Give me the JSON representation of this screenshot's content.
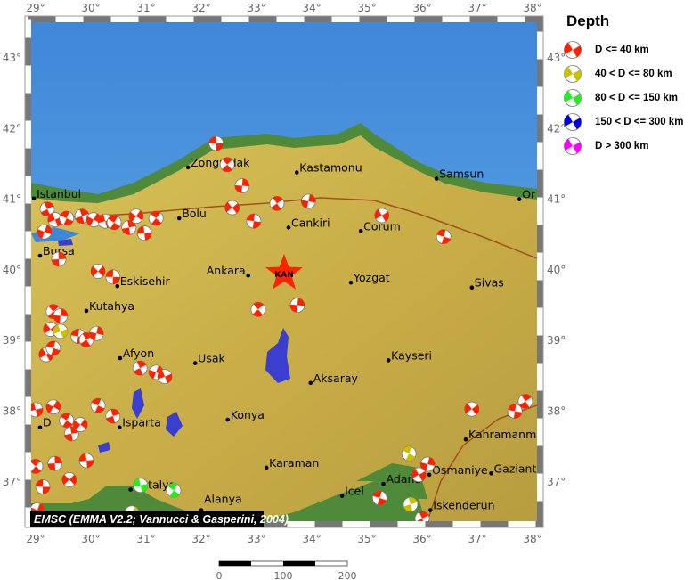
{
  "legend": {
    "title": "Depth",
    "items": [
      {
        "label": "D <= 40 km",
        "color": "#ff2200"
      },
      {
        "label": "40 < D <= 80 km",
        "color": "#c8c000"
      },
      {
        "label": "80 < D <= 150 km",
        "color": "#22ee22"
      },
      {
        "label": "150 < D <= 300 km",
        "color": "#0000dd"
      },
      {
        "label": "D > 300 km",
        "color": "#ff00ff"
      }
    ]
  },
  "axes": {
    "lon_ticks": [
      "29°",
      "30°",
      "31°",
      "32°",
      "33°",
      "34°",
      "35°",
      "36°",
      "37°",
      "38°"
    ],
    "lat_ticks": [
      "43°",
      "42°",
      "41°",
      "40°",
      "39°",
      "38°",
      "37°"
    ]
  },
  "attribution": "EMSC (EMMA V2.2; Vannucci & Gasperini, 2004)",
  "scale_bar": {
    "labels": [
      "0",
      "100",
      "200"
    ]
  },
  "main_event": {
    "label": "KAN",
    "lon": 33.5,
    "lat": 39.95,
    "color": "#ff2200"
  },
  "cities": [
    {
      "name": "Istanbul",
      "lon": 28.97,
      "lat": 41.01
    },
    {
      "name": "Zonguldak",
      "lon": 31.76,
      "lat": 41.45
    },
    {
      "name": "Kastamonu",
      "lon": 33.73,
      "lat": 41.38
    },
    {
      "name": "Samsun",
      "lon": 36.26,
      "lat": 41.29
    },
    {
      "name": "Or",
      "lon": 37.76,
      "lat": 41.0
    },
    {
      "name": "Bolu",
      "lon": 31.6,
      "lat": 40.73
    },
    {
      "name": "Cankiri",
      "lon": 33.58,
      "lat": 40.6
    },
    {
      "name": "Corum",
      "lon": 34.89,
      "lat": 40.55
    },
    {
      "name": "Bursa",
      "lon": 29.08,
      "lat": 40.2
    },
    {
      "name": "Ankara",
      "lon": 32.85,
      "lat": 39.92
    },
    {
      "name": "Yozgat",
      "lon": 34.71,
      "lat": 39.82
    },
    {
      "name": "Sivas",
      "lon": 36.9,
      "lat": 39.75
    },
    {
      "name": "Eskisehir",
      "lon": 30.48,
      "lat": 39.77
    },
    {
      "name": "Kutahya",
      "lon": 29.92,
      "lat": 39.42
    },
    {
      "name": "Afyon",
      "lon": 30.53,
      "lat": 38.75
    },
    {
      "name": "Usak",
      "lon": 31.89,
      "lat": 38.68
    },
    {
      "name": "Kayseri",
      "lon": 35.39,
      "lat": 38.72
    },
    {
      "name": "Aksaray",
      "lon": 33.98,
      "lat": 38.4
    },
    {
      "name": "Konya",
      "lon": 32.48,
      "lat": 37.88
    },
    {
      "name": "Isparta",
      "lon": 30.52,
      "lat": 37.77
    },
    {
      "name": "D",
      "lon": 29.08,
      "lat": 37.77
    },
    {
      "name": "Kahramanm",
      "lon": 36.79,
      "lat": 37.6
    },
    {
      "name": "Karaman",
      "lon": 33.18,
      "lat": 37.2
    },
    {
      "name": "Osmaniye",
      "lon": 36.13,
      "lat": 37.1
    },
    {
      "name": "Gaziant",
      "lon": 37.25,
      "lat": 37.12
    },
    {
      "name": "Adana",
      "lon": 35.3,
      "lat": 36.97
    },
    {
      "name": "Icel",
      "lon": 34.55,
      "lat": 36.8
    },
    {
      "name": "Antalya",
      "lon": 30.72,
      "lat": 36.89
    },
    {
      "name": "Alanya",
      "lon": 32.0,
      "lat": 36.6
    },
    {
      "name": "Iskenderun",
      "lon": 36.15,
      "lat": 36.6
    }
  ],
  "events": [
    {
      "lon": 32.27,
      "lat": 41.79,
      "depth": "shallow"
    },
    {
      "lon": 32.47,
      "lat": 41.49,
      "depth": "shallow"
    },
    {
      "lon": 32.74,
      "lat": 41.19,
      "depth": "shallow"
    },
    {
      "lon": 32.56,
      "lat": 40.88,
      "depth": "shallow"
    },
    {
      "lon": 32.95,
      "lat": 40.69,
      "depth": "shallow"
    },
    {
      "lon": 33.37,
      "lat": 40.94,
      "depth": "shallow"
    },
    {
      "lon": 33.94,
      "lat": 40.97,
      "depth": "shallow"
    },
    {
      "lon": 35.27,
      "lat": 40.77,
      "depth": "shallow"
    },
    {
      "lon": 36.39,
      "lat": 40.47,
      "depth": "shallow"
    },
    {
      "lon": 29.21,
      "lat": 40.86,
      "depth": "shallow"
    },
    {
      "lon": 29.16,
      "lat": 40.54,
      "depth": "shallow"
    },
    {
      "lon": 29.35,
      "lat": 40.71,
      "depth": "shallow"
    },
    {
      "lon": 29.56,
      "lat": 40.73,
      "depth": "shallow"
    },
    {
      "lon": 29.84,
      "lat": 40.76,
      "depth": "shallow"
    },
    {
      "lon": 30.05,
      "lat": 40.71,
      "depth": "shallow"
    },
    {
      "lon": 30.26,
      "lat": 40.69,
      "depth": "shallow"
    },
    {
      "lon": 30.42,
      "lat": 40.67,
      "depth": "shallow"
    },
    {
      "lon": 30.69,
      "lat": 40.6,
      "depth": "shallow"
    },
    {
      "lon": 30.82,
      "lat": 40.76,
      "depth": "shallow"
    },
    {
      "lon": 30.97,
      "lat": 40.52,
      "depth": "shallow"
    },
    {
      "lon": 31.18,
      "lat": 40.73,
      "depth": "shallow"
    },
    {
      "lon": 29.42,
      "lat": 40.15,
      "depth": "shallow"
    },
    {
      "lon": 30.13,
      "lat": 39.98,
      "depth": "shallow"
    },
    {
      "lon": 30.4,
      "lat": 39.9,
      "depth": "shallow"
    },
    {
      "lon": 29.32,
      "lat": 39.41,
      "depth": "shallow"
    },
    {
      "lon": 29.45,
      "lat": 39.35,
      "depth": "shallow"
    },
    {
      "lon": 29.27,
      "lat": 39.16,
      "depth": "shallow"
    },
    {
      "lon": 29.77,
      "lat": 39.06,
      "depth": "shallow"
    },
    {
      "lon": 29.92,
      "lat": 39.01,
      "depth": "shallow"
    },
    {
      "lon": 30.1,
      "lat": 39.1,
      "depth": "shallow"
    },
    {
      "lon": 29.19,
      "lat": 38.8,
      "depth": "shallow"
    },
    {
      "lon": 29.32,
      "lat": 38.89,
      "depth": "shallow"
    },
    {
      "lon": 30.89,
      "lat": 38.61,
      "depth": "shallow"
    },
    {
      "lon": 31.18,
      "lat": 38.55,
      "depth": "shallow"
    },
    {
      "lon": 31.34,
      "lat": 38.49,
      "depth": "shallow"
    },
    {
      "lon": 30.13,
      "lat": 38.08,
      "depth": "shallow"
    },
    {
      "lon": 30.4,
      "lat": 37.93,
      "depth": "shallow"
    },
    {
      "lon": 29.32,
      "lat": 38.06,
      "depth": "shallow"
    },
    {
      "lon": 29.0,
      "lat": 38.02,
      "depth": "shallow"
    },
    {
      "lon": 29.56,
      "lat": 37.87,
      "depth": "shallow"
    },
    {
      "lon": 29.65,
      "lat": 37.68,
      "depth": "shallow"
    },
    {
      "lon": 29.81,
      "lat": 37.81,
      "depth": "shallow"
    },
    {
      "lon": 29.92,
      "lat": 37.3,
      "depth": "shallow"
    },
    {
      "lon": 29.0,
      "lat": 37.22,
      "depth": "shallow"
    },
    {
      "lon": 29.35,
      "lat": 37.26,
      "depth": "shallow"
    },
    {
      "lon": 29.61,
      "lat": 37.03,
      "depth": "shallow"
    },
    {
      "lon": 29.13,
      "lat": 36.93,
      "depth": "shallow"
    },
    {
      "lon": 33.03,
      "lat": 39.44,
      "depth": "shallow"
    },
    {
      "lon": 33.74,
      "lat": 39.5,
      "depth": "shallow"
    },
    {
      "lon": 36.9,
      "lat": 38.03,
      "depth": "shallow"
    },
    {
      "lon": 37.68,
      "lat": 38.0,
      "depth": "shallow"
    },
    {
      "lon": 37.87,
      "lat": 38.14,
      "depth": "shallow"
    },
    {
      "lon": 36.1,
      "lat": 37.25,
      "depth": "shallow"
    },
    {
      "lon": 35.94,
      "lat": 37.1,
      "depth": "shallow"
    },
    {
      "lon": 35.23,
      "lat": 36.77,
      "depth": "shallow"
    },
    {
      "lon": 36.0,
      "lat": 36.48,
      "depth": "shallow"
    },
    {
      "lon": 29.03,
      "lat": 36.6,
      "depth": "shallow"
    },
    {
      "lon": 29.45,
      "lat": 39.13,
      "depth": "intermediate"
    },
    {
      "lon": 35.76,
      "lat": 37.4,
      "depth": "intermediate"
    },
    {
      "lon": 35.79,
      "lat": 36.68,
      "depth": "intermediate"
    },
    {
      "lon": 30.74,
      "lat": 36.56,
      "depth": "intermediate"
    },
    {
      "lon": 30.9,
      "lat": 36.95,
      "depth": "deep"
    },
    {
      "lon": 31.5,
      "lat": 36.88,
      "depth": "deep"
    }
  ],
  "depth_colors": {
    "shallow": "#ff2200",
    "intermediate": "#c8c000",
    "deep": "#22ee22"
  }
}
